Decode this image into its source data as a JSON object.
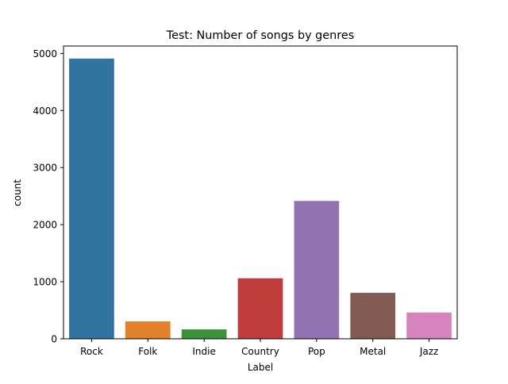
{
  "chart_data": {
    "type": "bar",
    "title": "Test: Number of songs by genres",
    "xlabel": "Label",
    "ylabel": "count",
    "categories": [
      "Rock",
      "Folk",
      "Indie",
      "Country",
      "Pop",
      "Metal",
      "Jazz"
    ],
    "values": [
      4910,
      305,
      165,
      1060,
      2415,
      805,
      460
    ],
    "colors": [
      "#3274a1",
      "#e1812c",
      "#3a923a",
      "#c03d3e",
      "#9372b2",
      "#845b53",
      "#d684bd"
    ],
    "ylim": [
      0,
      5130
    ],
    "yticks": [
      0,
      1000,
      2000,
      3000,
      4000,
      5000
    ],
    "grid": false,
    "legend": "none"
  }
}
